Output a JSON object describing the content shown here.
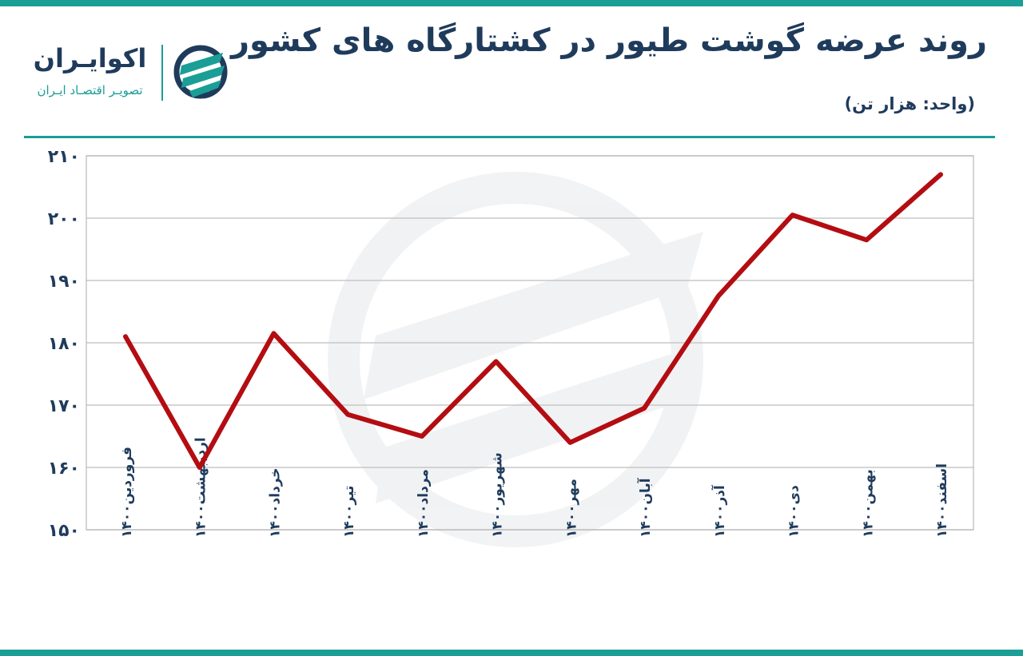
{
  "header": {
    "title": "روند عرضه گوشت طیور در کشتارگاه های کشور",
    "unit_label": "(واحد: هزار تن)"
  },
  "brand": {
    "name": "اکوایـران",
    "tagline": "تصویـر اقتصـاد ایـران",
    "logo_icon": "ecoiran-logo-icon"
  },
  "colors": {
    "accent": "#1a9e96",
    "title": "#1f3b5c",
    "line": "#b30d12",
    "grid": "#c8c8c8",
    "axis_text": "#1f3b5c",
    "logo_text": "#1f3b5c",
    "logo_sub": "#1a9e96"
  },
  "chart_data": {
    "type": "line",
    "title": "روند عرضه گوشت طیور در کشتارگاه های کشور",
    "xlabel": "",
    "ylabel": "",
    "categories": [
      "فروردین۱۴۰۰",
      "اردیبهشت۱۴۰۰",
      "خرداد۱۴۰۰",
      "تیر۱۴۰۰",
      "مرداد۱۴۰۰",
      "شهریور۱۴۰۰",
      "مهر۱۴۰۰",
      "آبان۱۴۰۰",
      "آذر۱۴۰۰",
      "دی۱۴۰۰",
      "بهمن۱۴۰۰",
      "اسفند۱۴۰۰"
    ],
    "series": [
      {
        "values": [
          181,
          160,
          181.5,
          168.5,
          165,
          177,
          164,
          169.5,
          187.5,
          200.5,
          196.5,
          207
        ]
      }
    ],
    "ylim": [
      150,
      210
    ],
    "yticks": [
      150,
      160,
      170,
      180,
      190,
      200,
      210
    ],
    "ytick_labels": [
      "۱۵۰",
      "۱۶۰",
      "۱۷۰",
      "۱۸۰",
      "۱۹۰",
      "۲۰۰",
      "۲۱۰"
    ],
    "grid": true,
    "legend": "none"
  }
}
